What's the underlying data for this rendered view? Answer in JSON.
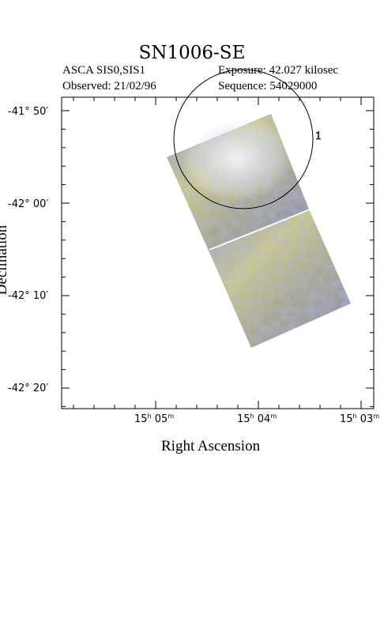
{
  "header": {
    "title": "SN1006-SE",
    "instrument": "ASCA SIS0,SIS1",
    "exposure": "Exposure: 42.027 kilosec",
    "observed": "Observed: 21/02/96",
    "sequence": "Sequence: 54029000"
  },
  "axes": {
    "x_title": "Right Ascension",
    "y_title": "Declination",
    "x_ticks": [
      {
        "h": "15",
        "m": "05"
      },
      {
        "h": "15",
        "m": "04"
      },
      {
        "h": "15",
        "m": "03"
      }
    ],
    "y_ticks": [
      "-41° 50′",
      "-42° 00′",
      "-42° 10′",
      "-42° 20′"
    ]
  },
  "marker_label": "1",
  "colors": {
    "image_blue": "#7f88b8",
    "image_yellow": "#c8c48a",
    "image_bright": "#eef0f8",
    "axis": "#000000"
  }
}
